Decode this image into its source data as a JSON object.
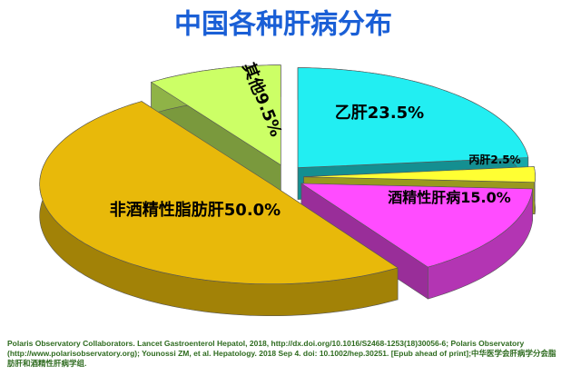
{
  "chart_data": {
    "type": "pie3d",
    "title": "中国各种肝病分布",
    "categories": [
      "乙肝",
      "丙肝",
      "酒精性肝病",
      "非酒精性脂肪肝",
      "其他"
    ],
    "values": [
      23.5,
      2.5,
      15.0,
      50.0,
      9.5
    ],
    "value_labels": [
      "23.5%",
      "2.5%",
      "15.0%",
      "50.0%",
      "9.5%"
    ],
    "colors": [
      "#22eef2",
      "#ffff33",
      "#ff4cff",
      "#e8b90a",
      "#ccff66"
    ],
    "source": "Polaris Observatory Collaborators. Lancet Gastroenterol Hepatol, 2018, http://dx.doi.org/10.1016/S2468-1253(18)30056-6; Polaris Observatory (http://www.polarisobservatory.org); Younossi ZM, et al. Hepatology. 2018 Sep 4. doi: 10.1002/hep.30251. [Epub ahead of print];中华医学会肝病学分会脂肪肝和酒精性肝病学组."
  }
}
